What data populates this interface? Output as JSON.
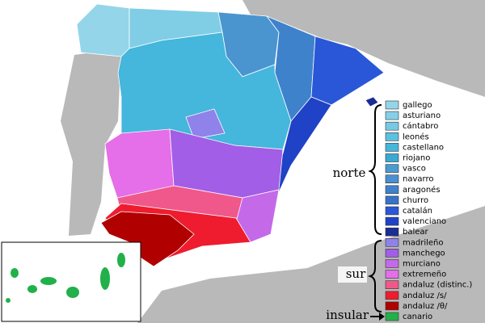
{
  "legend": {
    "items": [
      {
        "label": "gallego",
        "color": "#94d5e9"
      },
      {
        "label": "asturiano",
        "color": "#86d0e7"
      },
      {
        "label": "cántabro",
        "color": "#78cae4"
      },
      {
        "label": "leonés",
        "color": "#5cc0e0"
      },
      {
        "label": "castellano",
        "color": "#45b6dc"
      },
      {
        "label": "riojano",
        "color": "#3aa9d3"
      },
      {
        "label": "vasco",
        "color": "#4a9bd2"
      },
      {
        "label": "navarro",
        "color": "#4a8fcf"
      },
      {
        "label": "aragonés",
        "color": "#3f82cc"
      },
      {
        "label": "churro",
        "color": "#3674c9"
      },
      {
        "label": "catalán",
        "color": "#2a57d8"
      },
      {
        "label": "valenciano",
        "color": "#1f42c6"
      },
      {
        "label": "balear",
        "color": "#1a2d92"
      },
      {
        "label": "madrileño",
        "color": "#8f82ea"
      },
      {
        "label": "manchego",
        "color": "#a25ee6"
      },
      {
        "label": "murciano",
        "color": "#c46ae8"
      },
      {
        "label": "extremeño",
        "color": "#e56ee9"
      },
      {
        "label": "andaluz (distinc.)",
        "color": "#f0588c"
      },
      {
        "label": "andaluz /s/",
        "color": "#ee1c2e"
      },
      {
        "label": "andaluz /θ/",
        "color": "#b00000"
      },
      {
        "label": "canario",
        "color": "#22b04a"
      }
    ]
  },
  "groups": {
    "norte": "norte",
    "sur": "sur",
    "insular": "insular"
  }
}
